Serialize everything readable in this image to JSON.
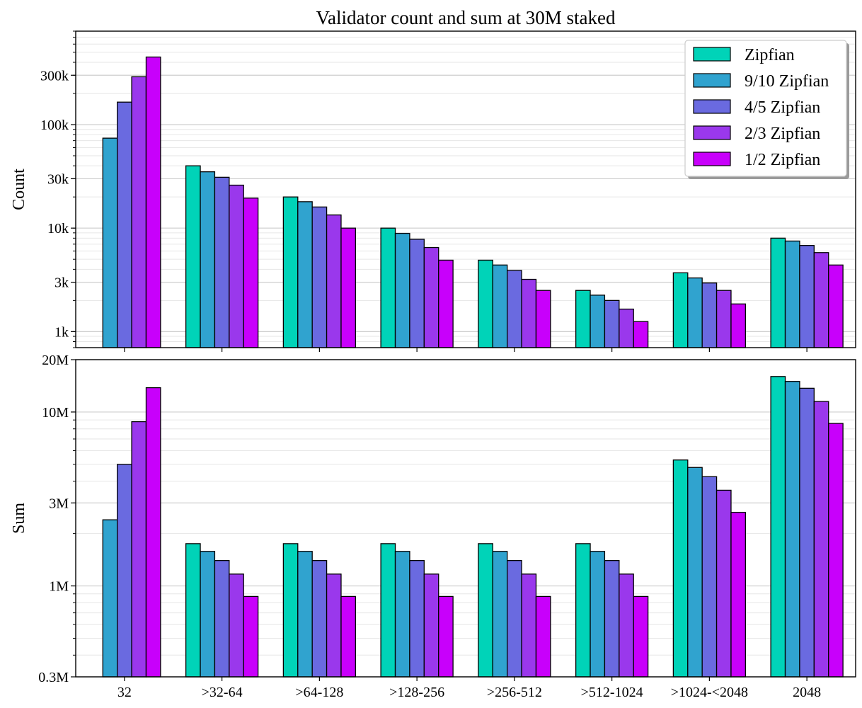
{
  "chart_data": {
    "type": "bar",
    "title": "Validator count and sum at 30M staked",
    "categories": [
      "32",
      ">32-64",
      ">64-128",
      ">128-256",
      ">256-512",
      ">512-1024",
      ">1024-<2048",
      "2048"
    ],
    "series_names": [
      "Zipfian",
      "9/10 Zipfian",
      "4/5 Zipfian",
      "2/3 Zipfian",
      "1/2 Zipfian"
    ],
    "colors": [
      "#00d3b8",
      "#30a3cf",
      "#6a6ae0",
      "#9a38ec",
      "#c800fb"
    ],
    "legend": {
      "placement": "top-right",
      "shadow": true
    },
    "grid": true,
    "panels": [
      {
        "ylabel": "Count",
        "scale": "log",
        "ylim": [
          700,
          800000
        ],
        "yticks": [
          1000,
          3000,
          10000,
          30000,
          100000,
          300000
        ],
        "ytick_labels": [
          "1k",
          "3k",
          "10k",
          "30k",
          "100k",
          "300k"
        ],
        "series": [
          {
            "name": "Zipfian",
            "values": [
              null,
              40000,
              20000,
              10000,
              4900,
              2500,
              3700,
              8000
            ]
          },
          {
            "name": "9/10 Zipfian",
            "values": [
              74000,
              35000,
              18000,
              8900,
              4400,
              2250,
              3300,
              7500
            ]
          },
          {
            "name": "4/5 Zipfian",
            "values": [
              165000,
              31000,
              16000,
              7800,
              3900,
              2000,
              2950,
              6800
            ]
          },
          {
            "name": "2/3 Zipfian",
            "values": [
              290000,
              26000,
              13400,
              6500,
              3200,
              1650,
              2500,
              5800
            ]
          },
          {
            "name": "1/2 Zipfian",
            "values": [
              450000,
              19500,
              10000,
              4900,
              2500,
              1250,
              1850,
              4400
            ]
          }
        ]
      },
      {
        "ylabel": "Sum",
        "scale": "log",
        "ylim": [
          300000,
          20000000
        ],
        "yticks": [
          300000,
          1000000,
          3000000,
          10000000,
          20000000
        ],
        "ytick_labels": [
          "0.3M",
          "1M",
          "3M",
          "10M",
          "20M"
        ],
        "series": [
          {
            "name": "Zipfian",
            "values": [
              null,
              1750000,
              1750000,
              1750000,
              1750000,
              1750000,
              5300000,
              16000000
            ]
          },
          {
            "name": "9/10 Zipfian",
            "values": [
              2400000,
              1580000,
              1580000,
              1580000,
              1580000,
              1580000,
              4800000,
              15000000
            ]
          },
          {
            "name": "4/5 Zipfian",
            "values": [
              5000000,
              1400000,
              1400000,
              1400000,
              1400000,
              1400000,
              4250000,
              13700000
            ]
          },
          {
            "name": "2/3 Zipfian",
            "values": [
              8800000,
              1170000,
              1170000,
              1170000,
              1170000,
              1170000,
              3550000,
              11500000
            ]
          },
          {
            "name": "1/2 Zipfian",
            "values": [
              13800000,
              870000,
              870000,
              870000,
              870000,
              870000,
              2650000,
              8600000
            ]
          }
        ]
      }
    ]
  }
}
